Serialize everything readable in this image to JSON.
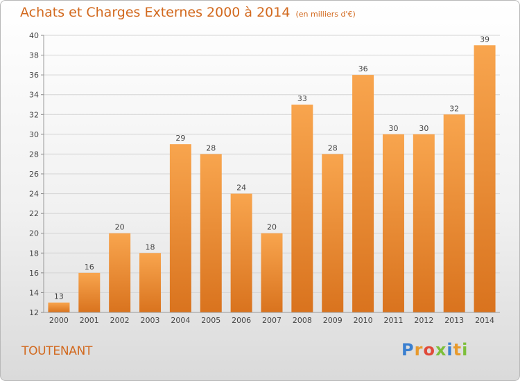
{
  "title": "Achats et Charges Externes 2000 à 2014",
  "subtitle": "(en milliers d'€)",
  "commune": "TOUTENANT",
  "logo": {
    "letters": [
      "P",
      "r",
      "o",
      "x",
      "i",
      "t",
      "i"
    ],
    "colors": [
      "#3a7fd0",
      "#e89a2c",
      "#e04a3a",
      "#7cbf3a",
      "#3a7fd0",
      "#e89a2c",
      "#7cbf3a"
    ]
  },
  "colors": {
    "bar_light": "#f8a54e",
    "bar_dark": "#d9731e",
    "text": "#d2691e",
    "label": "#444444"
  },
  "chart_data": {
    "type": "bar",
    "title": "Achats et Charges Externes 2000 à 2014",
    "subtitle": "(en milliers d'€)",
    "categories": [
      "2000",
      "2001",
      "2002",
      "2003",
      "2004",
      "2005",
      "2006",
      "2007",
      "2008",
      "2009",
      "2010",
      "2011",
      "2012",
      "2013",
      "2014"
    ],
    "values": [
      13,
      16,
      20,
      18,
      29,
      28,
      24,
      20,
      33,
      28,
      36,
      30,
      30,
      32,
      39
    ],
    "value_labels": [
      "13",
      "16",
      "20",
      "18",
      "29",
      "28",
      "24",
      "20",
      "33",
      "28",
      "36",
      "30",
      "30",
      "32",
      "39"
    ],
    "ylim": [
      12,
      40
    ],
    "yticks": [
      12,
      14,
      16,
      18,
      20,
      22,
      24,
      26,
      28,
      30,
      32,
      34,
      36,
      38,
      40
    ],
    "ytick_labels": [
      "12",
      "14",
      "16",
      "18",
      "20",
      "22",
      "24",
      "26",
      "28",
      "30",
      "32",
      "34",
      "36",
      "38",
      "40"
    ],
    "xlabel": "",
    "ylabel": "",
    "grid": true,
    "legend": "none"
  }
}
